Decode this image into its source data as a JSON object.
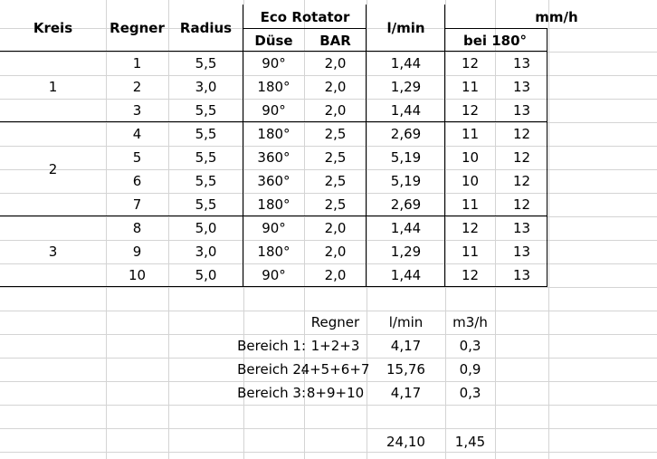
{
  "header": {
    "kreis": "Kreis",
    "regner": "Regner",
    "radius": "Radius",
    "eco_rotator": "Eco Rotator",
    "duese": "Düse",
    "bar": "BAR",
    "lmin": "l/min",
    "mmh": "mm/h",
    "bei180": "bei 180°"
  },
  "kreis_labels": [
    "1",
    "2",
    "3"
  ],
  "rows": [
    {
      "regner": "1",
      "radius": "5,5",
      "duese": "90°",
      "bar": "2,0",
      "lmin": "1,44",
      "mm1": "12",
      "mm2": "13"
    },
    {
      "regner": "2",
      "radius": "3,0",
      "duese": "180°",
      "bar": "2,0",
      "lmin": "1,29",
      "mm1": "11",
      "mm2": "13"
    },
    {
      "regner": "3",
      "radius": "5,5",
      "duese": "90°",
      "bar": "2,0",
      "lmin": "1,44",
      "mm1": "12",
      "mm2": "13"
    },
    {
      "regner": "4",
      "radius": "5,5",
      "duese": "180°",
      "bar": "2,5",
      "lmin": "2,69",
      "mm1": "11",
      "mm2": "12"
    },
    {
      "regner": "5",
      "radius": "5,5",
      "duese": "360°",
      "bar": "2,5",
      "lmin": "5,19",
      "mm1": "10",
      "mm2": "12"
    },
    {
      "regner": "6",
      "radius": "5,5",
      "duese": "360°",
      "bar": "2,5",
      "lmin": "5,19",
      "mm1": "10",
      "mm2": "12"
    },
    {
      "regner": "7",
      "radius": "5,5",
      "duese": "180°",
      "bar": "2,5",
      "lmin": "2,69",
      "mm1": "11",
      "mm2": "12"
    },
    {
      "regner": "8",
      "radius": "5,0",
      "duese": "90°",
      "bar": "2,0",
      "lmin": "1,44",
      "mm1": "12",
      "mm2": "13"
    },
    {
      "regner": "9",
      "radius": "3,0",
      "duese": "180°",
      "bar": "2,0",
      "lmin": "1,29",
      "mm1": "11",
      "mm2": "13"
    },
    {
      "regner": "10",
      "radius": "5,0",
      "duese": "90°",
      "bar": "2,0",
      "lmin": "1,44",
      "mm1": "12",
      "mm2": "13"
    }
  ],
  "summary": {
    "header_regner": "Regner",
    "header_lmin": "l/min",
    "header_m3h": "m3/h",
    "rows": [
      {
        "label": "Bereich 1:",
        "regner": "1+2+3",
        "lmin": "4,17",
        "m3h": "0,3"
      },
      {
        "label": "Bereich 2:",
        "regner": "4+5+6+7",
        "lmin": "15,76",
        "m3h": "0,9"
      },
      {
        "label": "Bereich 3:",
        "regner": "8+9+10",
        "lmin": "4,17",
        "m3h": "0,3"
      }
    ],
    "total_lmin": "24,10",
    "total_m3h": "1,45"
  }
}
